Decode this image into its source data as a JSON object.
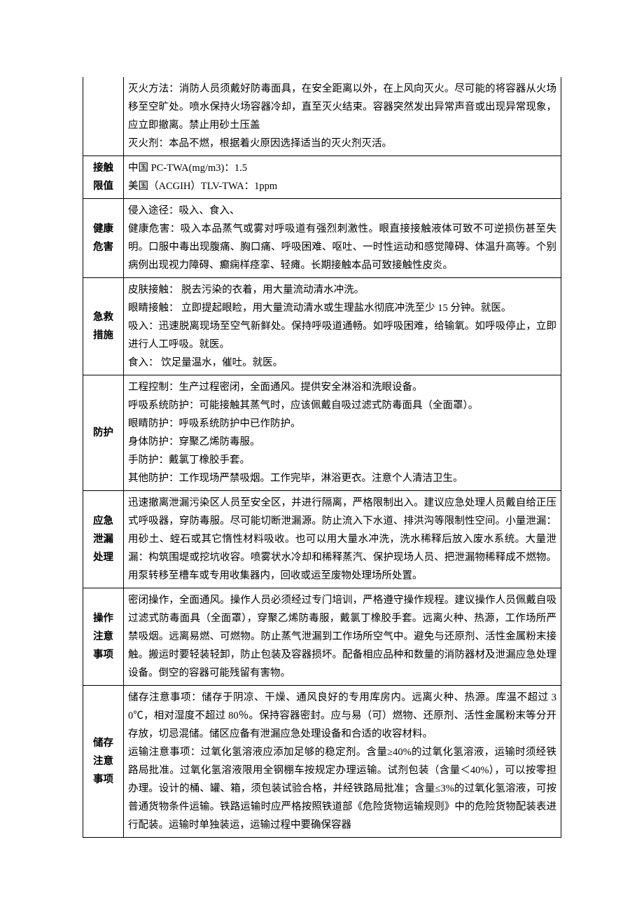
{
  "table": {
    "rows": [
      {
        "label": "",
        "content": "灭火方法：消防人员须戴好防毒面具，在安全距离以外，在上风向灭火。尽可能的将容器从火场移至空旷处。喷水保持火场容器冷却，直至灭火结束。容器突然发出异常声音或出现异常现象，应立即撤离。禁止用砂土压盖\n灭火剂：本品不燃，根据着火原因选择适当的灭火剂灭活。"
      },
      {
        "label": "接触\n限值",
        "content": "中国 PC-TWA(mg/m3)：1.5\n美国（ACGIH）TLV-TWA：1ppm"
      },
      {
        "label": "健康\n危害",
        "content": "侵入途径：吸入、食入、\n健康危害：吸入本品蒸气或雾对呼吸道有强烈刺激性。眼直接接触液体可致不可逆损伤甚至失明。口服中毒出现腹痛、胸口痛、呼吸困难、呕吐、一时性运动和感觉障碍、体温升高等。个别病例出现视力障碍、癫痫样痉挛、轻瘫。长期接触本品可致接触性皮炎。"
      },
      {
        "label": "急救\n措施",
        "content": "皮肤接触：  脱去污染的衣着，用大量流动清水冲洗。\n眼睛接触：  立即提起眼睑，用大量流动清水或生理盐水彻底冲洗至少 15 分钟。就医。\n吸入：迅速脱离现场至空气新鲜处。保持呼吸道通畅。如呼吸困难，给输氧。如呼吸停止，立即进行人工呼吸。就医。\n食入：  饮足量温水，催吐。就医。"
      },
      {
        "label": "防护",
        "content": "工程控制：生产过程密闭，全面通风。提供安全淋浴和洗眼设备。\n呼吸系统防护：可能接触其蒸气时，应该佩戴自吸过滤式防毒面具（全面罩）。\n眼睛防护：呼吸系统防护中已作防护。\n身体防护：穿聚乙烯防毒服。\n手防护：戴氯丁橡胶手套。\n其他防护：工作现场严禁吸烟。工作完毕，淋浴更衣。注意个人清洁卫生。"
      },
      {
        "label": "应急\n泄漏\n处理",
        "content": "迅速撤离泄漏污染区人员至安全区，并进行隔离，严格限制出入。建议应急处理人员戴自给正压式呼吸器，穿防毒服。尽可能切断泄漏源。防止流入下水道、排洪沟等限制性空间。小量泄漏：用砂土、蛭石或其它惰性材料吸收。也可以用大量水冲洗，洗水稀释后放入废水系统。大量泄漏：构筑围堤或挖坑收容。喷雾状水冷却和稀释蒸汽、保护现场人员、把泄漏物稀释成不燃物。用泵转移至槽车或专用收集器内，回收或运至废物处理场所处置。"
      },
      {
        "label": "操作\n注意\n事项",
        "content": "密闭操作，全面通风。操作人员必须经过专门培训，严格遵守操作规程。建议操作人员佩戴自吸过滤式防毒面具（全面罩），穿聚乙烯防毒服，戴氯丁橡胶手套。远离火种、热源，工作场所严禁吸烟。远离易燃、可燃物。防止蒸气泄漏到工作场所空气中。避免与还原剂、活性金属粉末接触。搬运时要轻装轻卸，防止包装及容器损坏。配备相应品种和数量的消防器材及泄漏应急处理设备。倒空的容器可能残留有害物。"
      },
      {
        "label": "储存\n注意\n事项",
        "content": "储存注意事项：储存于阴凉、干燥、通风良好的专用库房内。远离火种、热源。库温不超过 30℃，相对湿度不超过 80％。保持容器密封。应与易（可）燃物、还原剂、活性金属粉末等分开存放，切忌混储。储区应备有泄漏应急处理设备和合适的收容材料。\n运输注意事项：过氧化氢溶液应添加足够的稳定剂。含量≥40%的过氧化氢溶液，运输时须经铁路局批准。过氧化氢溶液限用全钢棚车按规定办理运输。试剂包装（含量＜40%），可以按零担办理。设计的桶、罐、箱，须包装试验合格，并经铁路局批准；含量≤3%的过氧化氢溶液，可按普通货物条件运输。铁路运输时应严格按照铁道部《危险货物运输规则》中的危险货物配装表进行配装。运输时单独装运，运输过程中要确保容器"
      }
    ]
  }
}
